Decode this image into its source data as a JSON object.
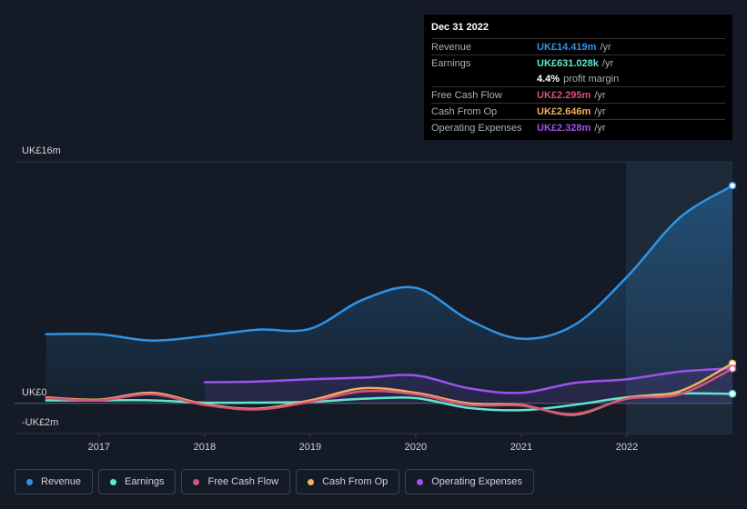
{
  "chart_data": {
    "type": "line",
    "x": [
      2016.5,
      2017,
      2017.5,
      2018,
      2018.5,
      2019,
      2019.5,
      2020,
      2020.5,
      2021,
      2021.5,
      2022,
      2022.5,
      2023
    ],
    "xlim": [
      2016.2,
      2023.0
    ],
    "xticks": [
      2017,
      2018,
      2019,
      2020,
      2021,
      2022
    ],
    "ylim": [
      -2,
      16
    ],
    "yticks": [
      {
        "value": -2,
        "label": "-UK£2m"
      },
      {
        "value": 0,
        "label": "UK£0"
      },
      {
        "value": 16,
        "label": "UK£16m"
      }
    ],
    "grid": true,
    "series": [
      {
        "name": "Revenue",
        "color": "#2e93e6",
        "values": [
          4.58,
          4.58,
          4.16,
          4.46,
          4.88,
          4.94,
          6.87,
          7.65,
          5.54,
          4.28,
          5.18,
          8.37,
          12.29,
          14.419
        ]
      },
      {
        "name": "Earnings",
        "color": "#5ee8d0",
        "values": [
          0.2,
          0.2,
          0.2,
          0.05,
          0.05,
          0.1,
          0.3,
          0.35,
          -0.3,
          -0.45,
          -0.1,
          0.4,
          0.65,
          0.631
        ]
      },
      {
        "name": "Free Cash Flow",
        "color": "#d6537e",
        "values": [
          0.35,
          0.2,
          0.6,
          -0.1,
          -0.4,
          0.1,
          0.8,
          0.6,
          -0.1,
          -0.15,
          -0.7,
          0.3,
          0.6,
          2.295
        ]
      },
      {
        "name": "Cash From Op",
        "color": "#f0b060",
        "values": [
          0.4,
          0.25,
          0.7,
          -0.05,
          -0.35,
          0.2,
          1.0,
          0.7,
          0,
          -0.1,
          -0.75,
          0.35,
          0.8,
          2.646
        ]
      },
      {
        "name": "Operating Expenses",
        "color": "#a050f0",
        "values": [
          null,
          null,
          null,
          1.4,
          1.45,
          1.6,
          1.7,
          1.85,
          1.0,
          0.7,
          1.35,
          1.6,
          2.1,
          2.328
        ]
      }
    ],
    "tooltip": {
      "date": "Dec 31 2022",
      "rows": [
        {
          "label": "Revenue",
          "value": "UK£14.419m",
          "unit": "/yr"
        },
        {
          "label": "Earnings",
          "value": "UK£631.028k",
          "unit": "/yr"
        },
        {
          "label": "Free Cash Flow",
          "value": "UK£2.295m",
          "unit": "/yr"
        },
        {
          "label": "Cash From Op",
          "value": "UK£2.646m",
          "unit": "/yr"
        },
        {
          "label": "Operating Expenses",
          "value": "UK£2.328m",
          "unit": "/yr"
        }
      ],
      "margin": {
        "value": "4.4%",
        "label": "profit margin"
      }
    }
  }
}
